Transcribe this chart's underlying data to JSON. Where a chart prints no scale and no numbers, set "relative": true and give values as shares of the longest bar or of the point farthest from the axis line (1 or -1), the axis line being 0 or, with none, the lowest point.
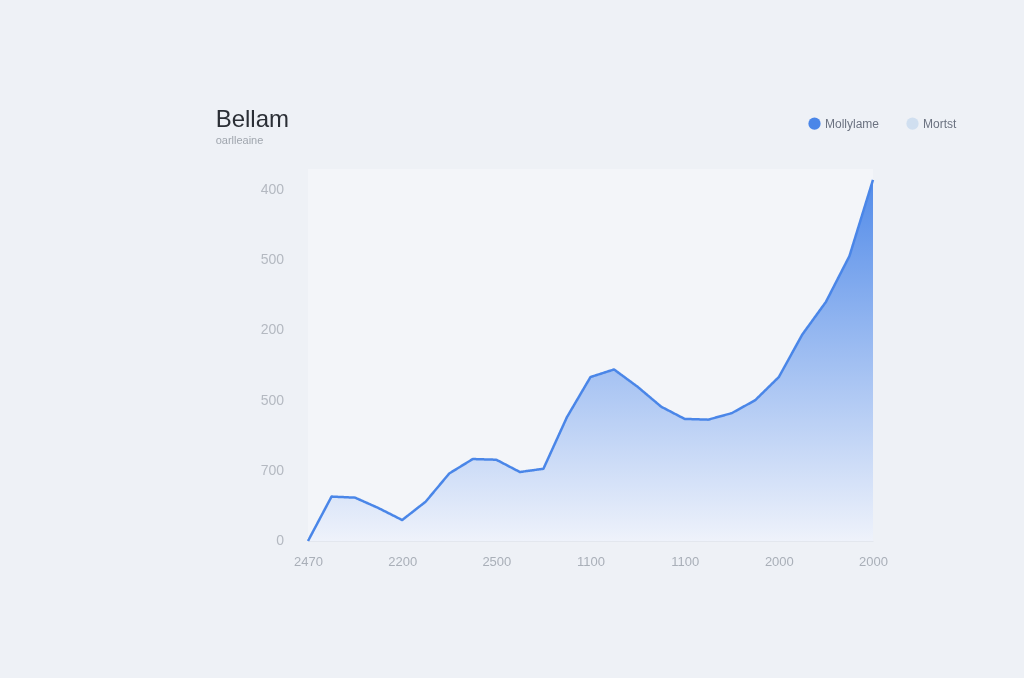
{
  "chart_data": {
    "type": "area",
    "title": "Bellam",
    "subtitle": "oarlleaine",
    "relative": true,
    "categories": [
      "2470",
      null,
      null,
      null,
      "2200",
      null,
      null,
      null,
      "2500",
      null,
      null,
      null,
      "1100",
      null,
      null,
      null,
      "1100",
      null,
      null,
      null,
      "2000",
      null,
      null,
      null,
      "2000"
    ],
    "series": [
      {
        "name": "Mollylame",
        "color": "#4a86e8",
        "values": [
          0,
          0.123,
          0.12,
          0.091,
          0.058,
          0.109,
          0.187,
          0.227,
          0.225,
          0.191,
          0.2,
          0.343,
          0.454,
          0.475,
          0.427,
          0.372,
          0.338,
          0.336,
          0.354,
          0.39,
          0.454,
          0.572,
          0.662,
          0.789,
          1
        ]
      },
      {
        "name": "Mortst",
        "color": "#d0dff0",
        "values": [
          null,
          null,
          null,
          null,
          null,
          null,
          null,
          null,
          null,
          null,
          null,
          null,
          null,
          null,
          null,
          null,
          null,
          null,
          null,
          null,
          null,
          null,
          null,
          null,
          null
        ]
      }
    ],
    "annotations": [
      "400",
      "500",
      "200",
      "500",
      "700",
      "0"
    ],
    "grid": false,
    "legend": "top right",
    "marker": "none",
    "line_style": "solid"
  }
}
